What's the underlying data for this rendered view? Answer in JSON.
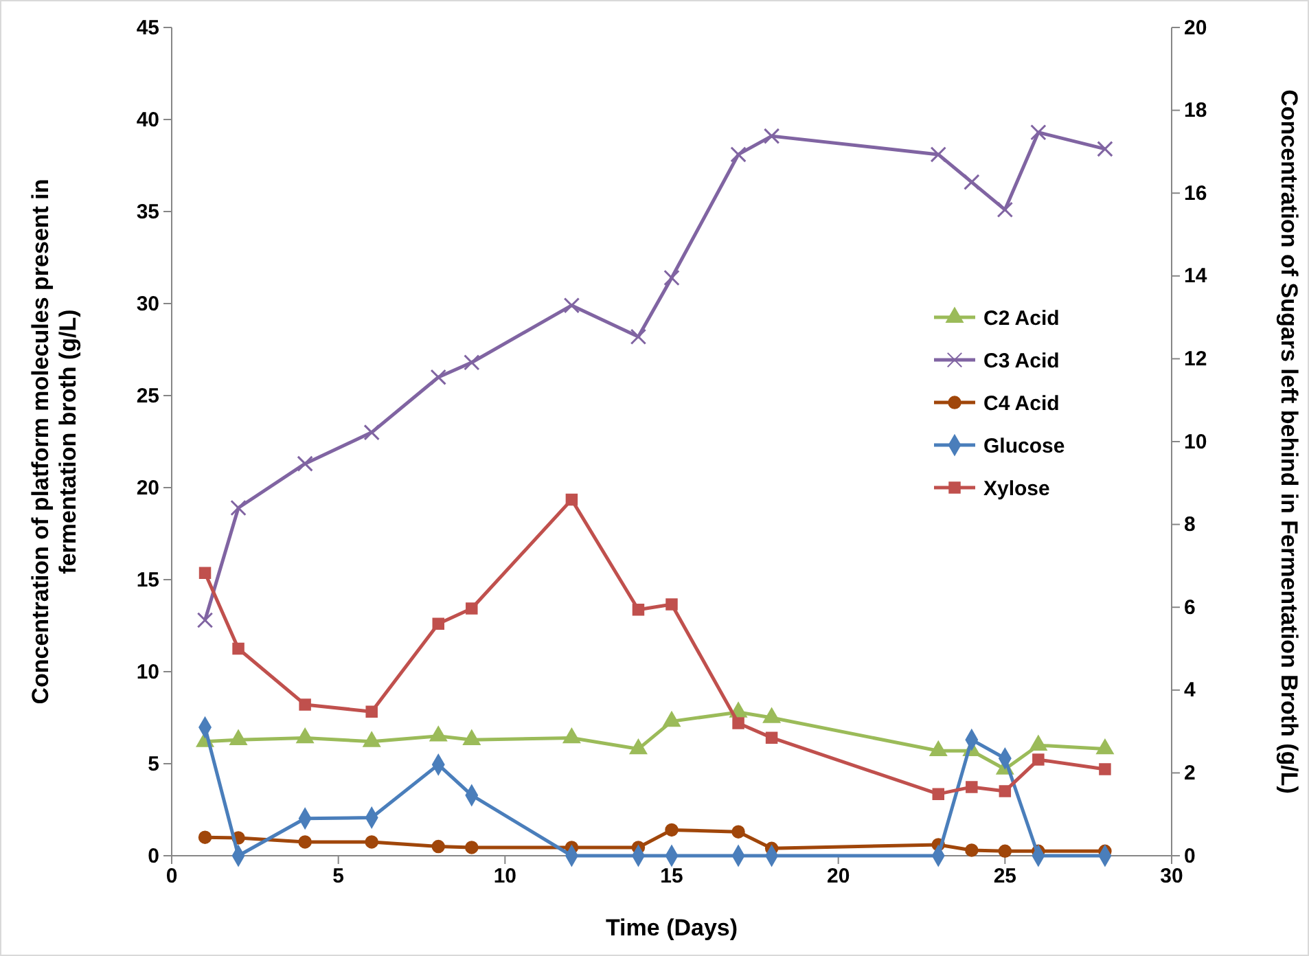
{
  "chart_data": {
    "type": "line",
    "xlabel": "Time (Days)",
    "ylabel": "Concentration of platform molecules present in fermentation broth (g/L)",
    "y2label": "Concentration of Sugars left behind in Fermentation Broth (g/L)",
    "x": [
      1,
      2,
      4,
      6,
      8,
      9,
      12,
      14,
      15,
      17,
      18,
      23,
      24,
      25,
      26,
      28
    ],
    "xlim": [
      0,
      30
    ],
    "xticks": [
      0,
      5,
      10,
      15,
      20,
      25,
      30
    ],
    "ylim": [
      0,
      45
    ],
    "yticks": [
      0,
      5,
      10,
      15,
      20,
      25,
      30,
      35,
      40,
      45
    ],
    "y2lim": [
      0,
      20
    ],
    "y2ticks": [
      0,
      2,
      4,
      6,
      8,
      10,
      12,
      14,
      16,
      18,
      20
    ],
    "legend": "right",
    "grid": false,
    "series": [
      {
        "name": "C2 Acid",
        "color": "#9bbb59",
        "marker": "triangle",
        "values": [
          6.2,
          6.3,
          6.4,
          6.2,
          6.5,
          6.3,
          6.4,
          5.8,
          7.3,
          7.8,
          7.5,
          5.7,
          5.7,
          4.7,
          6.0,
          5.8
        ]
      },
      {
        "name": "C3 Acid",
        "color": "#8064a2",
        "marker": "cross",
        "values": [
          12.8,
          18.9,
          21.3,
          23.0,
          26.0,
          26.8,
          29.9,
          28.2,
          31.4,
          38.1,
          39.1,
          38.1,
          36.6,
          35.1,
          39.3,
          38.4
        ]
      },
      {
        "name": "C4 Acid",
        "color": "#a0460a",
        "marker": "circle",
        "values": [
          1.0,
          0.97,
          0.75,
          0.75,
          0.5,
          0.45,
          0.45,
          0.45,
          1.4,
          1.3,
          0.4,
          0.6,
          0.3,
          0.25,
          0.25,
          0.25
        ]
      },
      {
        "name": "Glucose",
        "color": "#4a7ebb",
        "marker": "diamond",
        "axis": "y2",
        "values": [
          3.1,
          0,
          0.9,
          0.92,
          2.2,
          1.46,
          0,
          0,
          0,
          0,
          0,
          0,
          2.8,
          2.35,
          0,
          0
        ]
      },
      {
        "name": "Xylose",
        "color": "#c0504d",
        "marker": "square",
        "axis": "y2",
        "values": [
          6.83,
          5.0,
          3.65,
          3.48,
          5.6,
          5.97,
          8.6,
          5.94,
          6.07,
          3.2,
          2.85,
          1.49,
          1.66,
          1.56,
          2.32,
          2.09
        ]
      }
    ]
  }
}
